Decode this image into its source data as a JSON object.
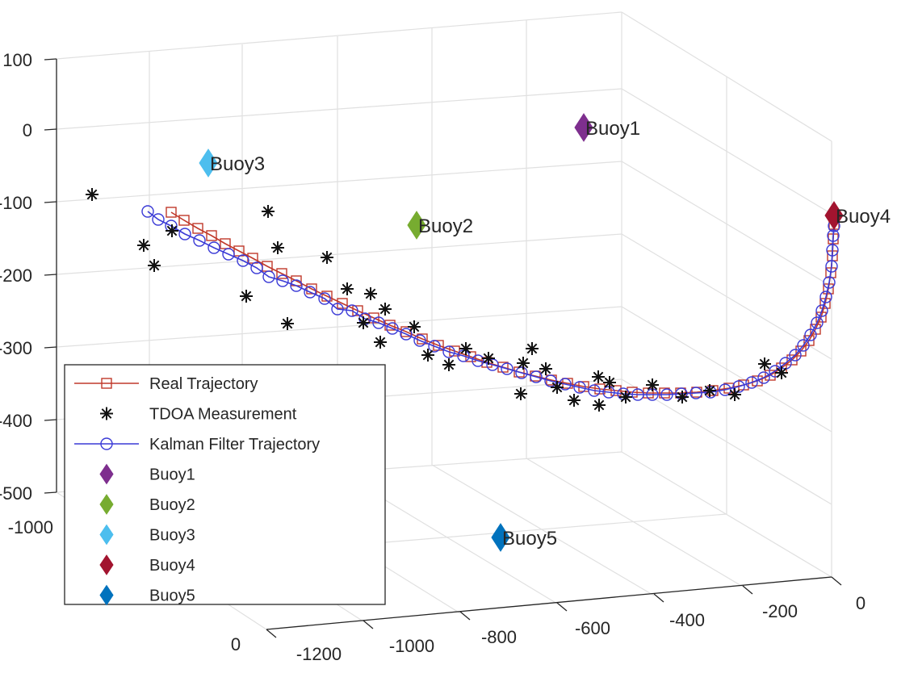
{
  "chart_data": {
    "type": "scatter",
    "view": "3d",
    "grid": true,
    "legend_position": "bottom-left",
    "axes": {
      "z": {
        "ticks": [
          "100",
          "0",
          "-100",
          "-200",
          "-300",
          "-400",
          "-500"
        ],
        "range": [
          -500,
          100
        ]
      },
      "x": {
        "ticks": [
          "-1200",
          "-1000",
          "-800",
          "-600",
          "-400",
          "-200",
          "0"
        ]
      },
      "y": {
        "ticks": [
          "0",
          "-1000"
        ]
      }
    },
    "legend": [
      {
        "label": "Real Trajectory",
        "marker": "square-line",
        "color": "#c0392b"
      },
      {
        "label": "TDOA Measurement",
        "marker": "star",
        "color": "#111111"
      },
      {
        "label": "Kalman Filter Trajectory",
        "marker": "circle-line",
        "color": "#3a3ad6"
      },
      {
        "label": "Buoy1",
        "marker": "diamond",
        "color": "#7e2f8e"
      },
      {
        "label": "Buoy2",
        "marker": "diamond",
        "color": "#77ac30"
      },
      {
        "label": "Buoy3",
        "marker": "diamond",
        "color": "#4dbeee"
      },
      {
        "label": "Buoy4",
        "marker": "diamond",
        "color": "#a2142f"
      },
      {
        "label": "Buoy5",
        "marker": "diamond",
        "color": "#0072bd"
      }
    ],
    "buoys": [
      {
        "name": "Buoy1",
        "color": "#7e2f8e",
        "anchor": [
          723,
          158
        ]
      },
      {
        "name": "Buoy2",
        "color": "#77ac30",
        "anchor": [
          516,
          279
        ]
      },
      {
        "name": "Buoy3",
        "color": "#4dbeee",
        "anchor": [
          258,
          202
        ]
      },
      {
        "name": "Buoy4",
        "color": "#a2142f",
        "anchor": [
          1033,
          267
        ]
      },
      {
        "name": "Buoy5",
        "color": "#0072bd",
        "anchor": [
          620,
          666
        ]
      }
    ],
    "real_trajectory_screen": [
      [
        212,
        263
      ],
      [
        228,
        273
      ],
      [
        245,
        283
      ],
      [
        262,
        292
      ],
      [
        279,
        302
      ],
      [
        296,
        311
      ],
      [
        313,
        320
      ],
      [
        331,
        330
      ],
      [
        349,
        339
      ],
      [
        367,
        348
      ],
      [
        386,
        358
      ],
      [
        405,
        367
      ],
      [
        424,
        376
      ],
      [
        443,
        385
      ],
      [
        463,
        394
      ],
      [
        483,
        403
      ],
      [
        503,
        411
      ],
      [
        523,
        420
      ],
      [
        543,
        428
      ],
      [
        563,
        435
      ],
      [
        583,
        442
      ],
      [
        603,
        449
      ],
      [
        623,
        455
      ],
      [
        643,
        461
      ],
      [
        663,
        466
      ],
      [
        683,
        471
      ],
      [
        703,
        475
      ],
      [
        723,
        479
      ],
      [
        743,
        482
      ],
      [
        763,
        484
      ],
      [
        783,
        486
      ],
      [
        803,
        487
      ],
      [
        823,
        487
      ],
      [
        843,
        487
      ],
      [
        863,
        486
      ],
      [
        883,
        484
      ],
      [
        903,
        481
      ],
      [
        921,
        477
      ],
      [
        938,
        472
      ],
      [
        954,
        465
      ],
      [
        968,
        456
      ],
      [
        981,
        446
      ],
      [
        992,
        435
      ],
      [
        1002,
        422
      ],
      [
        1010,
        408
      ],
      [
        1017,
        393
      ],
      [
        1022,
        376
      ],
      [
        1026,
        358
      ],
      [
        1029,
        338
      ],
      [
        1031,
        317
      ],
      [
        1032,
        296
      ],
      [
        1033,
        278
      ]
    ],
    "kalman_trajectory_screen": [
      [
        183,
        262
      ],
      [
        196,
        272
      ],
      [
        212,
        280
      ],
      [
        229,
        290
      ],
      [
        247,
        298
      ],
      [
        265,
        307
      ],
      [
        283,
        315
      ],
      [
        301,
        323
      ],
      [
        318,
        332
      ],
      [
        333,
        343
      ],
      [
        350,
        348
      ],
      [
        367,
        354
      ],
      [
        384,
        362
      ],
      [
        402,
        370
      ],
      [
        418,
        383
      ],
      [
        436,
        385
      ],
      [
        452,
        395
      ],
      [
        469,
        400
      ],
      [
        486,
        407
      ],
      [
        503,
        414
      ],
      [
        520,
        422
      ],
      [
        538,
        429
      ],
      [
        556,
        436
      ],
      [
        574,
        441
      ],
      [
        592,
        447
      ],
      [
        610,
        452
      ],
      [
        628,
        457
      ],
      [
        646,
        462
      ],
      [
        664,
        467
      ],
      [
        682,
        472
      ],
      [
        700,
        476
      ],
      [
        718,
        480
      ],
      [
        736,
        484
      ],
      [
        754,
        486
      ],
      [
        772,
        488
      ],
      [
        790,
        489
      ],
      [
        808,
        489
      ],
      [
        826,
        489
      ],
      [
        844,
        488
      ],
      [
        862,
        487
      ],
      [
        880,
        486
      ],
      [
        898,
        483
      ],
      [
        915,
        479
      ],
      [
        931,
        474
      ],
      [
        946,
        468
      ],
      [
        960,
        460
      ],
      [
        973,
        450
      ],
      [
        985,
        440
      ],
      [
        995,
        428
      ],
      [
        1004,
        415
      ],
      [
        1012,
        400
      ],
      [
        1018,
        385
      ],
      [
        1023,
        368
      ],
      [
        1027,
        350
      ],
      [
        1030,
        330
      ],
      [
        1031,
        310
      ],
      [
        1032,
        292
      ],
      [
        1033,
        280
      ]
    ],
    "tdoa_measurements_screen": [
      [
        114,
        241
      ],
      [
        178,
        304
      ],
      [
        191,
        329
      ],
      [
        213,
        286
      ],
      [
        332,
        262
      ],
      [
        344,
        307
      ],
      [
        305,
        367
      ],
      [
        356,
        401
      ],
      [
        405,
        319
      ],
      [
        430,
        358
      ],
      [
        459,
        364
      ],
      [
        477,
        383
      ],
      [
        450,
        400
      ],
      [
        471,
        424
      ],
      [
        513,
        405
      ],
      [
        530,
        440
      ],
      [
        556,
        452
      ],
      [
        577,
        432
      ],
      [
        605,
        444
      ],
      [
        648,
        450
      ],
      [
        659,
        432
      ],
      [
        676,
        457
      ],
      [
        645,
        488
      ],
      [
        690,
        480
      ],
      [
        711,
        496
      ],
      [
        741,
        467
      ],
      [
        755,
        474
      ],
      [
        742,
        502
      ],
      [
        775,
        492
      ],
      [
        808,
        477
      ],
      [
        845,
        492
      ],
      [
        879,
        484
      ],
      [
        910,
        489
      ],
      [
        947,
        451
      ],
      [
        968,
        462
      ]
    ]
  }
}
